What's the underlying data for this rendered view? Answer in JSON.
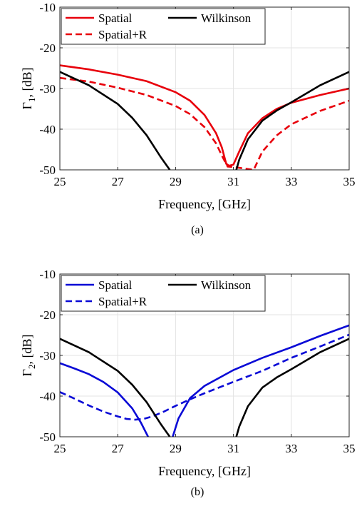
{
  "chart_data": [
    {
      "type": "line",
      "caption": "(a)",
      "xlabel": "Frequency, [GHz]",
      "ylabel_main": "Γ",
      "ylabel_sub": "1",
      "ylabel_unit": ", [dB]",
      "xlim": [
        25,
        35
      ],
      "ylim": [
        -50,
        -10
      ],
      "xticks": [
        25,
        27,
        29,
        31,
        33,
        35
      ],
      "yticks": [
        -10,
        -20,
        -30,
        -40,
        -50
      ],
      "grid": true,
      "legend_position": "top",
      "series": [
        {
          "name": "Spatial",
          "color": "#e8000b",
          "dash": "solid",
          "x": [
            25,
            26,
            27,
            28,
            29,
            29.5,
            30,
            30.4,
            30.6,
            30.75,
            30.85,
            31,
            31.2,
            31.5,
            32,
            32.5,
            33,
            34,
            35
          ],
          "y": [
            -24.3,
            -25.3,
            -26.6,
            -28.2,
            -30.9,
            -33,
            -36.5,
            -41,
            -44.5,
            -48.5,
            -49,
            -48.7,
            -45.5,
            -41,
            -37.3,
            -35,
            -33.5,
            -31.6,
            -30
          ]
        },
        {
          "name": "Spatial+R",
          "color": "#e8000b",
          "dash": "dashed",
          "x": [
            25,
            26,
            27,
            28,
            29,
            29.5,
            30,
            30.4,
            30.6,
            30.8,
            31.0,
            31.7,
            31.8,
            32,
            32.5,
            33,
            34,
            35
          ],
          "y": [
            -27.4,
            -28.3,
            -29.8,
            -31.6,
            -34.3,
            -36.3,
            -39.5,
            -43.5,
            -46.5,
            -49.2,
            -49.3,
            -50,
            -48.5,
            -45.5,
            -41.5,
            -38.8,
            -35.5,
            -33
          ]
        },
        {
          "name": "Wilkinson",
          "color": "#000000",
          "dash": "solid",
          "x": [
            25,
            26,
            27,
            27.5,
            28,
            28.5,
            28.8,
            29,
            29.5,
            30,
            30.5,
            31.1,
            31.2,
            31.5,
            32,
            32.5,
            33,
            34,
            35
          ],
          "y": [
            -25.9,
            -29.2,
            -33.8,
            -37.2,
            -41.5,
            -47,
            -50,
            null,
            null,
            null,
            null,
            -50,
            -47.5,
            -42.5,
            -37.9,
            -35.4,
            -33.4,
            -29.2,
            -25.9
          ]
        }
      ]
    },
    {
      "type": "line",
      "caption": "(b)",
      "xlabel": "Frequency, [GHz]",
      "ylabel_main": "Γ",
      "ylabel_sub": "2",
      "ylabel_unit": ", [dB]",
      "xlim": [
        25,
        35
      ],
      "ylim": [
        -50,
        -10
      ],
      "xticks": [
        25,
        27,
        29,
        31,
        33,
        35
      ],
      "yticks": [
        -10,
        -20,
        -30,
        -40,
        -50
      ],
      "grid": true,
      "legend_position": "top",
      "series": [
        {
          "name": "Spatial",
          "color": "#0a0ad6",
          "dash": "solid",
          "x": [
            25,
            25.5,
            26,
            26.5,
            27,
            27.5,
            27.8,
            28.05,
            null,
            28.9,
            29.1,
            29.5,
            30,
            31,
            32,
            33,
            34,
            35
          ],
          "y": [
            -31.9,
            -33.2,
            -34.6,
            -36.5,
            -39.1,
            -43,
            -46.5,
            -50,
            null,
            -50,
            -45.5,
            -40.5,
            -37.5,
            -33.6,
            -30.6,
            -28,
            -25.2,
            -22.6
          ]
        },
        {
          "name": "Spatial+R",
          "color": "#0a0ad6",
          "dash": "dashed",
          "x": [
            25,
            25.5,
            26,
            26.5,
            27,
            27.3,
            27.6,
            27.9,
            28.2,
            28.6,
            29,
            29.5,
            30,
            31,
            32,
            33,
            34,
            35
          ],
          "y": [
            -39,
            -40.6,
            -42.3,
            -43.8,
            -45,
            -45.6,
            -45.8,
            -45.6,
            -45,
            -43.8,
            -42.4,
            -40.8,
            -39.3,
            -36.5,
            -33.8,
            -30.6,
            -27.8,
            -24.9
          ]
        },
        {
          "name": "Wilkinson",
          "color": "#000000",
          "dash": "solid",
          "x": [
            25,
            26,
            27,
            27.5,
            28,
            28.5,
            28.8,
            29,
            29.5,
            30,
            30.5,
            31.1,
            31.2,
            31.5,
            32,
            32.5,
            33,
            34,
            35
          ],
          "y": [
            -25.9,
            -29.2,
            -33.8,
            -37.2,
            -41.5,
            -47,
            -50,
            null,
            null,
            null,
            null,
            -50,
            -47.5,
            -42.5,
            -37.9,
            -35.4,
            -33.4,
            -29.2,
            -25.9
          ]
        }
      ]
    }
  ]
}
